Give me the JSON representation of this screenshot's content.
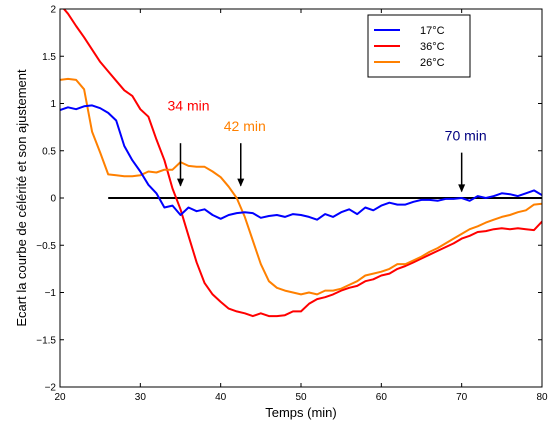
{
  "chart_data": {
    "type": "line",
    "xlabel": "Temps (min)",
    "ylabel": "Ecart la courbe de célérité et son ajustement",
    "xlim": [
      20,
      80
    ],
    "ylim": [
      -2,
      2
    ],
    "x_ticks": [
      "20",
      "30",
      "40",
      "50",
      "60",
      "70",
      "80"
    ],
    "y_ticks": [
      "−2",
      "−1.5",
      "−1",
      "−0.5",
      "0",
      "0.5",
      "1",
      "1.5",
      "2"
    ],
    "x_tick_values": [
      20,
      30,
      40,
      50,
      60,
      70,
      80
    ],
    "y_tick_values": [
      -2,
      -1.5,
      -1,
      -0.5,
      0,
      0.5,
      1,
      1.5,
      2
    ],
    "grid": false,
    "legend_position": "top-right",
    "series": [
      {
        "name": "17°C",
        "color": "#0000ff",
        "points": [
          [
            20,
            0.93
          ],
          [
            21,
            0.96
          ],
          [
            22,
            0.94
          ],
          [
            23,
            0.97
          ],
          [
            24,
            0.98
          ],
          [
            25,
            0.95
          ],
          [
            26,
            0.9
          ],
          [
            27,
            0.82
          ],
          [
            28,
            0.55
          ],
          [
            29,
            0.4
          ],
          [
            30,
            0.28
          ],
          [
            31,
            0.14
          ],
          [
            32,
            0.05
          ],
          [
            33,
            -0.1
          ],
          [
            34,
            -0.08
          ],
          [
            35,
            -0.18
          ],
          [
            36,
            -0.1
          ],
          [
            37,
            -0.14
          ],
          [
            38,
            -0.12
          ],
          [
            39,
            -0.18
          ],
          [
            40,
            -0.22
          ],
          [
            41,
            -0.18
          ],
          [
            42,
            -0.16
          ],
          [
            43,
            -0.15
          ],
          [
            44,
            -0.16
          ],
          [
            45,
            -0.21
          ],
          [
            46,
            -0.19
          ],
          [
            47,
            -0.18
          ],
          [
            48,
            -0.2
          ],
          [
            49,
            -0.17
          ],
          [
            50,
            -0.18
          ],
          [
            51,
            -0.2
          ],
          [
            52,
            -0.23
          ],
          [
            53,
            -0.17
          ],
          [
            54,
            -0.2
          ],
          [
            55,
            -0.15
          ],
          [
            56,
            -0.12
          ],
          [
            57,
            -0.17
          ],
          [
            58,
            -0.1
          ],
          [
            59,
            -0.13
          ],
          [
            60,
            -0.08
          ],
          [
            61,
            -0.05
          ],
          [
            62,
            -0.07
          ],
          [
            63,
            -0.07
          ],
          [
            64,
            -0.04
          ],
          [
            65,
            -0.02
          ],
          [
            66,
            -0.02
          ],
          [
            67,
            -0.03
          ],
          [
            68,
            -0.01
          ],
          [
            69,
            -0.01
          ],
          [
            70,
            0.0
          ],
          [
            71,
            -0.03
          ],
          [
            72,
            0.02
          ],
          [
            73,
            0.0
          ],
          [
            74,
            0.02
          ],
          [
            75,
            0.05
          ],
          [
            76,
            0.04
          ],
          [
            77,
            0.02
          ],
          [
            78,
            0.05
          ],
          [
            79,
            0.08
          ],
          [
            80,
            0.03
          ]
        ]
      },
      {
        "name": "36°C",
        "color": "#ff0000",
        "points": [
          [
            20,
            2.05
          ],
          [
            21,
            1.95
          ],
          [
            22,
            1.82
          ],
          [
            23,
            1.7
          ],
          [
            24,
            1.57
          ],
          [
            25,
            1.44
          ],
          [
            26,
            1.34
          ],
          [
            27,
            1.24
          ],
          [
            28,
            1.14
          ],
          [
            29,
            1.08
          ],
          [
            30,
            0.94
          ],
          [
            31,
            0.86
          ],
          [
            32,
            0.62
          ],
          [
            33,
            0.4
          ],
          [
            34,
            0.1
          ],
          [
            35,
            -0.12
          ],
          [
            36,
            -0.4
          ],
          [
            37,
            -0.68
          ],
          [
            38,
            -0.9
          ],
          [
            39,
            -1.02
          ],
          [
            40,
            -1.1
          ],
          [
            41,
            -1.17
          ],
          [
            42,
            -1.2
          ],
          [
            43,
            -1.22
          ],
          [
            44,
            -1.25
          ],
          [
            45,
            -1.22
          ],
          [
            46,
            -1.25
          ],
          [
            47,
            -1.25
          ],
          [
            48,
            -1.24
          ],
          [
            49,
            -1.2
          ],
          [
            50,
            -1.2
          ],
          [
            51,
            -1.12
          ],
          [
            52,
            -1.07
          ],
          [
            53,
            -1.05
          ],
          [
            54,
            -1.02
          ],
          [
            55,
            -0.98
          ],
          [
            56,
            -0.95
          ],
          [
            57,
            -0.93
          ],
          [
            58,
            -0.88
          ],
          [
            59,
            -0.86
          ],
          [
            60,
            -0.82
          ],
          [
            61,
            -0.8
          ],
          [
            62,
            -0.75
          ],
          [
            63,
            -0.72
          ],
          [
            64,
            -0.68
          ],
          [
            65,
            -0.64
          ],
          [
            66,
            -0.6
          ],
          [
            67,
            -0.56
          ],
          [
            68,
            -0.52
          ],
          [
            69,
            -0.48
          ],
          [
            70,
            -0.43
          ],
          [
            71,
            -0.4
          ],
          [
            72,
            -0.36
          ],
          [
            73,
            -0.35
          ],
          [
            74,
            -0.33
          ],
          [
            75,
            -0.32
          ],
          [
            76,
            -0.33
          ],
          [
            77,
            -0.32
          ],
          [
            78,
            -0.33
          ],
          [
            79,
            -0.34
          ],
          [
            80,
            -0.25
          ]
        ]
      },
      {
        "name": "26°C",
        "color": "#ff8000",
        "points": [
          [
            20,
            1.25
          ],
          [
            21,
            1.26
          ],
          [
            22,
            1.25
          ],
          [
            23,
            1.15
          ],
          [
            24,
            0.7
          ],
          [
            25,
            0.48
          ],
          [
            26,
            0.25
          ],
          [
            27,
            0.24
          ],
          [
            28,
            0.23
          ],
          [
            29,
            0.23
          ],
          [
            30,
            0.24
          ],
          [
            31,
            0.28
          ],
          [
            32,
            0.27
          ],
          [
            33,
            0.3
          ],
          [
            34,
            0.3
          ],
          [
            35,
            0.38
          ],
          [
            36,
            0.34
          ],
          [
            37,
            0.33
          ],
          [
            38,
            0.33
          ],
          [
            39,
            0.28
          ],
          [
            40,
            0.22
          ],
          [
            41,
            0.12
          ],
          [
            42,
            0.0
          ],
          [
            43,
            -0.2
          ],
          [
            44,
            -0.45
          ],
          [
            45,
            -0.7
          ],
          [
            46,
            -0.88
          ],
          [
            47,
            -0.95
          ],
          [
            48,
            -0.98
          ],
          [
            49,
            -1.0
          ],
          [
            50,
            -1.02
          ],
          [
            51,
            -1.0
          ],
          [
            52,
            -1.02
          ],
          [
            53,
            -0.98
          ],
          [
            54,
            -0.98
          ],
          [
            55,
            -0.96
          ],
          [
            56,
            -0.92
          ],
          [
            57,
            -0.88
          ],
          [
            58,
            -0.82
          ],
          [
            59,
            -0.8
          ],
          [
            60,
            -0.78
          ],
          [
            61,
            -0.75
          ],
          [
            62,
            -0.7
          ],
          [
            63,
            -0.7
          ],
          [
            64,
            -0.66
          ],
          [
            65,
            -0.62
          ],
          [
            66,
            -0.57
          ],
          [
            67,
            -0.53
          ],
          [
            68,
            -0.48
          ],
          [
            69,
            -0.43
          ],
          [
            70,
            -0.38
          ],
          [
            71,
            -0.33
          ],
          [
            72,
            -0.3
          ],
          [
            73,
            -0.26
          ],
          [
            74,
            -0.23
          ],
          [
            75,
            -0.2
          ],
          [
            76,
            -0.18
          ],
          [
            77,
            -0.15
          ],
          [
            78,
            -0.13
          ],
          [
            79,
            -0.07
          ],
          [
            80,
            -0.06
          ]
        ]
      }
    ],
    "reference_line": {
      "y": 0,
      "x_start": 26,
      "x_end": 80,
      "color": "#000000"
    },
    "annotations": [
      {
        "label": "34 min",
        "color": "#ff0000",
        "x": 35,
        "arrow_from_y": 0.58,
        "arrow_to_y": 0.12,
        "text_x": 36,
        "text_y": 0.98
      },
      {
        "label": "42 min",
        "color": "#ff8000",
        "x": 42.5,
        "arrow_from_y": 0.58,
        "arrow_to_y": 0.12,
        "text_x": 43,
        "text_y": 0.76
      },
      {
        "label": "70 min",
        "color": "#000080",
        "x": 70,
        "arrow_from_y": 0.48,
        "arrow_to_y": 0.06,
        "text_x": 70.5,
        "text_y": 0.66
      }
    ]
  }
}
